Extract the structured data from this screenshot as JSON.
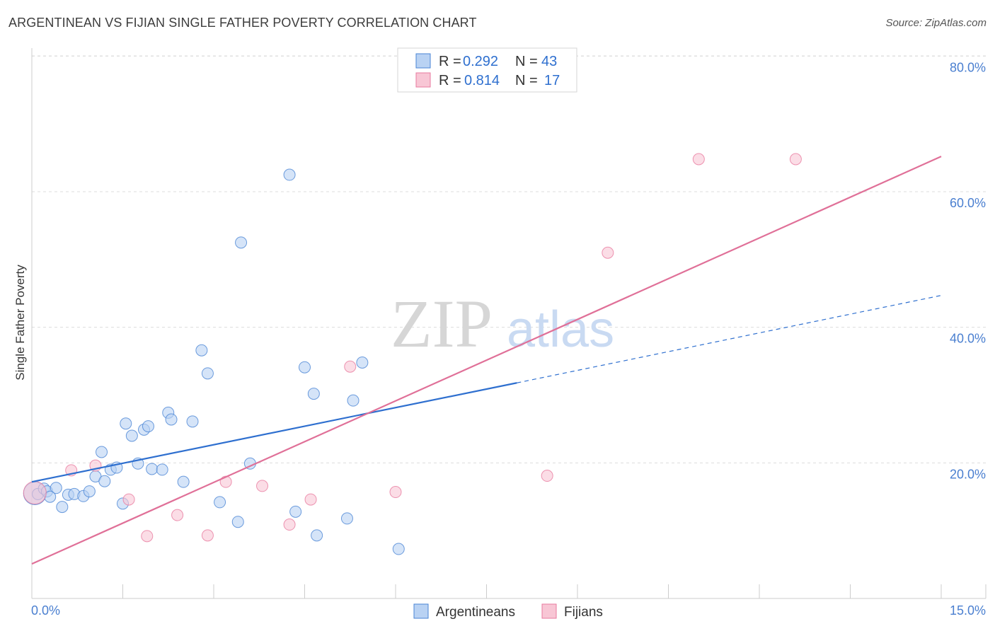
{
  "title": "ARGENTINEAN VS FIJIAN SINGLE FATHER POVERTY CORRELATION CHART",
  "source": "Source: ZipAtlas.com",
  "watermark": {
    "zip": "ZIP",
    "atlas": "atlas"
  },
  "colors": {
    "blue": "#4a84d4",
    "blue_fill": "#b9d2f3",
    "blue_line": "#2e6fcf",
    "pink": "#e87a9f",
    "pink_fill": "#f8c6d5",
    "pink_line": "#e07098",
    "tick": "#4a7fd0",
    "grid": "#dddddd"
  },
  "chart_data": {
    "type": "scatter",
    "title": "ARGENTINEAN VS FIJIAN SINGLE FATHER POVERTY CORRELATION CHART",
    "xlabel": "",
    "ylabel": "Single Father Poverty",
    "xlim": [
      0,
      15
    ],
    "ylim": [
      0,
      82
    ],
    "x_tick_labels": [
      "0.0%",
      "15.0%"
    ],
    "y_ticks": [
      20,
      40,
      60,
      80
    ],
    "y_tick_labels": [
      "20.0%",
      "40.0%",
      "60.0%",
      "80.0%"
    ],
    "legend": [
      {
        "r_label": "R =",
        "r_value": "0.292",
        "n_label": "N =",
        "n_value": "43"
      },
      {
        "r_label": "R =",
        "r_value": "0.814",
        "n_label": "N =",
        "n_value": "17"
      }
    ],
    "series": [
      {
        "name": "Argentineans",
        "color": "blue",
        "trend": {
          "x0": 0,
          "y0": 17.2,
          "x1": 8.0,
          "y1": 31.8,
          "dashed_to_x": 15,
          "dashed_to_y": 44.7
        },
        "points": [
          {
            "x": 0.05,
            "y": 15.5,
            "big": true
          },
          {
            "x": 0.1,
            "y": 15.4
          },
          {
            "x": 0.2,
            "y": 16.2
          },
          {
            "x": 0.25,
            "y": 15.8
          },
          {
            "x": 0.4,
            "y": 16.3
          },
          {
            "x": 0.5,
            "y": 13.5
          },
          {
            "x": 0.6,
            "y": 15.3
          },
          {
            "x": 0.7,
            "y": 15.4
          },
          {
            "x": 0.85,
            "y": 15.1
          },
          {
            "x": 0.95,
            "y": 15.8
          },
          {
            "x": 1.05,
            "y": 18.0
          },
          {
            "x": 1.15,
            "y": 21.6
          },
          {
            "x": 1.2,
            "y": 17.3
          },
          {
            "x": 1.3,
            "y": 19.0
          },
          {
            "x": 1.4,
            "y": 19.3
          },
          {
            "x": 1.5,
            "y": 14.0
          },
          {
            "x": 1.55,
            "y": 25.8
          },
          {
            "x": 1.65,
            "y": 24.0
          },
          {
            "x": 1.75,
            "y": 19.9
          },
          {
            "x": 1.85,
            "y": 24.9
          },
          {
            "x": 1.92,
            "y": 25.4
          },
          {
            "x": 1.98,
            "y": 19.1
          },
          {
            "x": 2.15,
            "y": 19.0
          },
          {
            "x": 2.25,
            "y": 27.4
          },
          {
            "x": 2.3,
            "y": 26.4
          },
          {
            "x": 2.5,
            "y": 17.2
          },
          {
            "x": 2.65,
            "y": 26.1
          },
          {
            "x": 2.8,
            "y": 36.6
          },
          {
            "x": 2.9,
            "y": 33.2
          },
          {
            "x": 3.1,
            "y": 14.2
          },
          {
            "x": 3.4,
            "y": 11.3
          },
          {
            "x": 3.45,
            "y": 52.5
          },
          {
            "x": 3.6,
            "y": 19.9
          },
          {
            "x": 4.25,
            "y": 62.5
          },
          {
            "x": 4.35,
            "y": 12.8
          },
          {
            "x": 4.5,
            "y": 34.1
          },
          {
            "x": 4.65,
            "y": 30.2
          },
          {
            "x": 4.7,
            "y": 9.3
          },
          {
            "x": 5.2,
            "y": 11.8
          },
          {
            "x": 5.3,
            "y": 29.2
          },
          {
            "x": 5.45,
            "y": 34.8
          },
          {
            "x": 6.05,
            "y": 7.3
          },
          {
            "x": 0.3,
            "y": 15.0
          }
        ]
      },
      {
        "name": "Fijians",
        "color": "pink",
        "trend": {
          "x0": 0,
          "y0": 5.1,
          "x1": 15,
          "y1": 65.2
        },
        "points": [
          {
            "x": 0.05,
            "y": 15.6,
            "big": true
          },
          {
            "x": 0.65,
            "y": 18.9
          },
          {
            "x": 1.05,
            "y": 19.6
          },
          {
            "x": 1.6,
            "y": 14.6
          },
          {
            "x": 1.9,
            "y": 9.2
          },
          {
            "x": 2.4,
            "y": 12.3
          },
          {
            "x": 2.9,
            "y": 9.3
          },
          {
            "x": 3.2,
            "y": 17.2
          },
          {
            "x": 3.8,
            "y": 16.6
          },
          {
            "x": 4.25,
            "y": 10.9
          },
          {
            "x": 4.6,
            "y": 14.6
          },
          {
            "x": 5.25,
            "y": 34.2
          },
          {
            "x": 6.0,
            "y": 15.7
          },
          {
            "x": 8.5,
            "y": 18.1
          },
          {
            "x": 9.5,
            "y": 51.0
          },
          {
            "x": 11.0,
            "y": 64.8
          },
          {
            "x": 12.6,
            "y": 64.8
          }
        ]
      }
    ]
  }
}
